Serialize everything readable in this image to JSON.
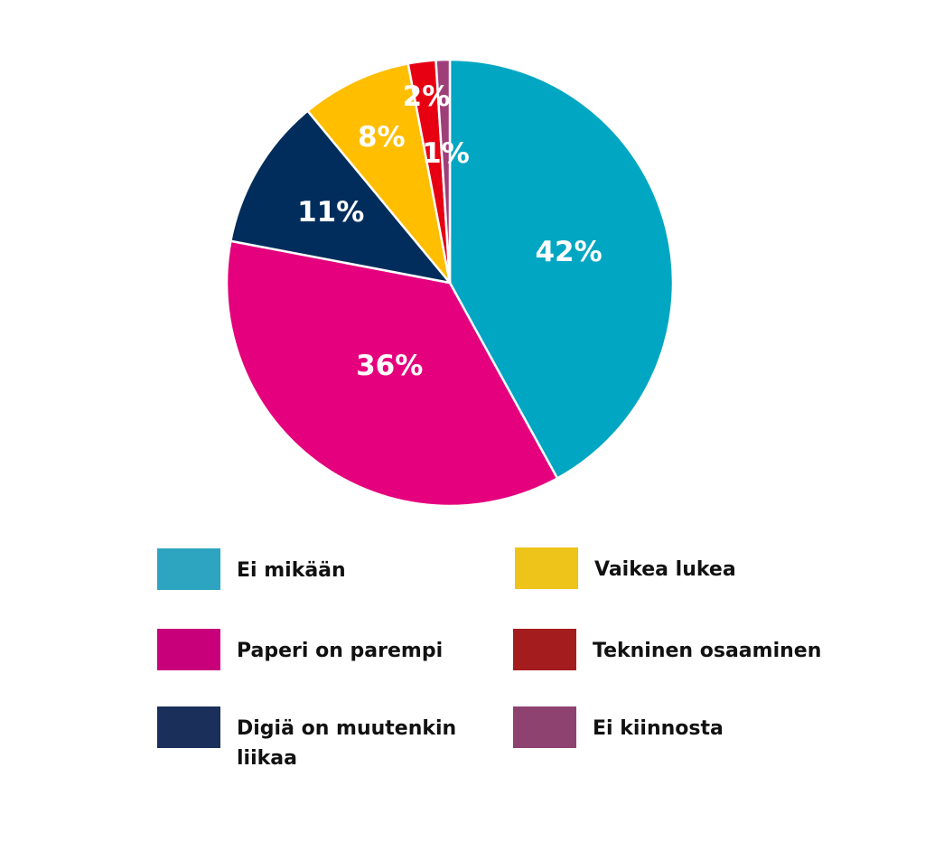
{
  "chart_data": {
    "type": "pie",
    "slices": [
      {
        "label": "Ei mikään",
        "value": 42,
        "display": "42%",
        "color": "#00A6C2"
      },
      {
        "label": "Paperi on parempi",
        "value": 36,
        "display": "36%",
        "color": "#E5007D"
      },
      {
        "label": "Digiä on muutenkin liikaa",
        "value": 11,
        "display": "11%",
        "color": "#002D5C"
      },
      {
        "label": "Vaikea lukea",
        "value": 8,
        "display": "8%",
        "color": "#FFBE00"
      },
      {
        "label": "Tekninen osaaminen",
        "value": 2,
        "display": "2%",
        "color": "#E60012"
      },
      {
        "label": "Ei kiinnosta",
        "value": 1,
        "display": "1%",
        "color": "#9E3F7A"
      }
    ],
    "start_angle": "top",
    "direction": "clockwise",
    "legend_position": "bottom"
  },
  "legend": {
    "items": [
      {
        "label": "Ei mikään",
        "color": "#2DA4C0"
      },
      {
        "label": "Paperi on parempi",
        "color": "#C8007A"
      },
      {
        "label": "Digiä on muutenkin liikaa",
        "color": "#1A305B"
      },
      {
        "label": "Vaikea lukea",
        "color": "#EEC31A"
      },
      {
        "label": "Tekninen osaaminen",
        "color": "#A51C1F"
      },
      {
        "label": "Ei kiinnosta",
        "color": "#8E426F"
      }
    ]
  }
}
